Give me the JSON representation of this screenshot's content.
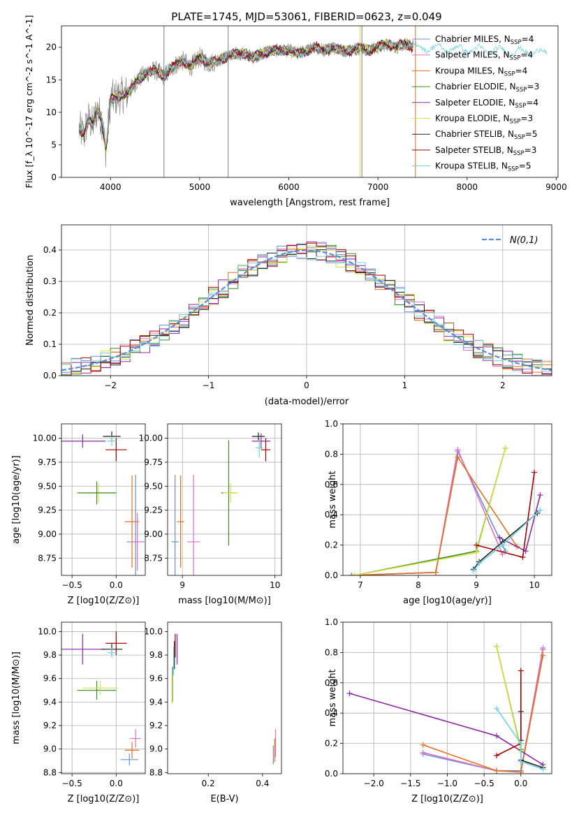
{
  "figure_title": "PLATE=1745, MJD=53061, FIBERID=0623, z=0.049",
  "chart_data": [
    {
      "type": "line",
      "name": "spectrum",
      "xlabel": "wavelength [Angstrom, rest frame]",
      "ylabel": "Flux [f_λ 10^-17 erg cm^-2 s^-1 A^-1]",
      "xlim": [
        3450,
        9020
      ],
      "ylim": [
        0,
        23.3
      ],
      "xticks": [
        4000,
        5000,
        6000,
        7000,
        8000,
        9000
      ],
      "yticks": [
        0,
        5,
        10,
        15,
        20
      ],
      "grid": false,
      "legend_position": "right",
      "data_trend": {
        "x": [
          3650,
          3700,
          3750,
          3800,
          3850,
          3900,
          3950,
          4000,
          4100,
          4200,
          4300,
          4400,
          4500,
          4600,
          4700,
          4800,
          4900,
          5000,
          5100,
          5200,
          5300,
          5400,
          5500,
          5600,
          5700,
          5800,
          5900,
          6000,
          6100,
          6200,
          6300,
          6400,
          6500,
          6600,
          6700,
          6800,
          6900,
          7000,
          7100,
          7200,
          7300,
          7400
        ],
        "y": [
          7.5,
          6.5,
          9.0,
          8.0,
          10.5,
          9.0,
          4.0,
          12.0,
          12.5,
          13.0,
          15.0,
          16.0,
          16.5,
          15.5,
          17.0,
          18.0,
          17.0,
          18.5,
          17.5,
          18.0,
          18.5,
          19.0,
          19.0,
          18.5,
          19.0,
          19.5,
          19.5,
          19.5,
          19.0,
          19.5,
          20.0,
          19.5,
          20.0,
          19.5,
          19.5,
          20.0,
          19.5,
          20.0,
          20.5,
          20.0,
          20.5,
          20.0
        ]
      },
      "series": [
        {
          "name": "Chabrier MILES, N_SSP=4",
          "color": "#6a8fd8"
        },
        {
          "name": "Salpeter MILES, N_SSP=4",
          "color": "#e070c0"
        },
        {
          "name": "Kroupa MILES, N_SSP=4",
          "color": "#e07020"
        },
        {
          "name": "Chabrier ELODIE, N_SSP=3",
          "color": "#3a8a2a"
        },
        {
          "name": "Salpeter ELODIE, N_SSP=4",
          "color": "#8a2aa0"
        },
        {
          "name": "Kroupa ELODIE, N_SSP=3",
          "color": "#d8e040"
        },
        {
          "name": "Chabrier STELIB, N_SSP=5",
          "color": "#202020"
        },
        {
          "name": "Salpeter STELIB, N_SSP=3",
          "color": "#a00000"
        },
        {
          "name": "Kroupa STELIB, N_SSP=5",
          "color": "#70d0e0"
        }
      ],
      "legend_entries": [
        {
          "base": "Chabrier MILES, N",
          "sub": "SSP",
          "tail": "=4"
        },
        {
          "base": "Salpeter MILES, N",
          "sub": "SSP",
          "tail": "=4"
        },
        {
          "base": "Kroupa MILES, N",
          "sub": "SSP",
          "tail": "=4"
        },
        {
          "base": "Chabrier ELODIE, N",
          "sub": "SSP",
          "tail": "=3"
        },
        {
          "base": "Salpeter ELODIE, N",
          "sub": "SSP",
          "tail": "=4"
        },
        {
          "base": "Kroupa ELODIE, N",
          "sub": "SSP",
          "tail": "=3"
        },
        {
          "base": "Chabrier STELIB, N",
          "sub": "SSP",
          "tail": "=5"
        },
        {
          "base": "Salpeter STELIB, N",
          "sub": "SSP",
          "tail": "=3"
        },
        {
          "base": "Kroupa STELIB, N",
          "sub": "SSP",
          "tail": "=5"
        }
      ]
    },
    {
      "type": "line",
      "name": "residual histogram",
      "xlabel": "(data-model)/error",
      "ylabel": "Normed distribution",
      "xlim": [
        -2.5,
        2.5
      ],
      "ylim": [
        0,
        0.48
      ],
      "xticks": [
        -2,
        -1,
        0,
        1,
        2
      ],
      "yticks": [
        0.0,
        0.1,
        0.2,
        0.3,
        0.4
      ],
      "grid": true,
      "legend": [
        "N(0,1)"
      ],
      "legend_position": "top-right",
      "normal_color": "#5b8bd8"
    },
    {
      "type": "scatter",
      "name": "age vs Z",
      "xlabel": "Z [log10(Z/Z⊙)]",
      "ylabel": "age [log10(age/yr)]",
      "xlim": [
        -0.62,
        0.33
      ],
      "ylim": [
        8.57,
        10.15
      ],
      "xticks": [
        -0.5,
        0.0
      ],
      "yticks": [
        8.75,
        9.0,
        9.25,
        9.5,
        9.75,
        10.0
      ],
      "grid": true,
      "points": [
        {
          "x": -0.38,
          "y": 9.97,
          "xerr": 0.26,
          "yerr": 0.07,
          "color": "#8a2aa0"
        },
        {
          "x": -0.05,
          "y": 10.02,
          "xerr": 0.1,
          "yerr": 0.05,
          "color": "#202020"
        },
        {
          "x": 0.0,
          "y": 9.88,
          "xerr": 0.12,
          "yerr": 0.12,
          "color": "#a00000"
        },
        {
          "x": -0.05,
          "y": 9.97,
          "xerr": 0.05,
          "yerr": 0.05,
          "color": "#70d0e0"
        },
        {
          "x": -0.2,
          "y": 9.43,
          "xerr": 0.2,
          "yerr": 0.1,
          "color": "#d8e040"
        },
        {
          "x": -0.22,
          "y": 9.43,
          "xerr": 0.22,
          "yerr": 0.12,
          "color": "#3a8a2a"
        },
        {
          "x": 0.18,
          "y": 9.13,
          "xerr": 0.08,
          "yerr": 0.48,
          "color": "#e07020"
        },
        {
          "x": 0.22,
          "y": 8.92,
          "xerr": 0.1,
          "yerr": 0.7,
          "color": "#6a8fd8"
        },
        {
          "x": 0.24,
          "y": 8.92,
          "xerr": 0.06,
          "yerr": 0.3,
          "color": "#e070c0"
        }
      ]
    },
    {
      "type": "scatter",
      "name": "age vs mass",
      "xlabel": "mass [log10(M/M⊙)]",
      "ylabel": "",
      "xlim": [
        8.84,
        10.07
      ],
      "ylim": [
        8.57,
        10.15
      ],
      "xticks": [
        9,
        10
      ],
      "yticks": [
        8.75,
        9.0,
        9.25,
        9.5,
        9.75,
        10.0
      ],
      "grid": true,
      "points": [
        {
          "x": 9.82,
          "y": 10.02,
          "xerr": 0.07,
          "yerr": 0.04,
          "color": "#202020"
        },
        {
          "x": 9.85,
          "y": 9.97,
          "xerr": 0.1,
          "yerr": 0.08,
          "color": "#8a2aa0"
        },
        {
          "x": 9.9,
          "y": 9.88,
          "xerr": 0.05,
          "yerr": 0.12,
          "color": "#a00000"
        },
        {
          "x": 9.83,
          "y": 9.9,
          "xerr": 0.04,
          "yerr": 0.1,
          "color": "#70d0e0"
        },
        {
          "x": 9.5,
          "y": 9.43,
          "xerr": 0.08,
          "yerr": 0.55,
          "color": "#3a8a2a"
        },
        {
          "x": 9.52,
          "y": 9.43,
          "xerr": 0.08,
          "yerr": 0.1,
          "color": "#d8e040"
        },
        {
          "x": 8.98,
          "y": 9.13,
          "xerr": 0.04,
          "yerr": 0.48,
          "color": "#e07020"
        },
        {
          "x": 8.92,
          "y": 8.92,
          "xerr": 0.04,
          "yerr": 0.7,
          "color": "#6a8fd8"
        },
        {
          "x": 9.12,
          "y": 8.92,
          "xerr": 0.07,
          "yerr": 0.7,
          "color": "#e070c0"
        }
      ]
    },
    {
      "type": "line",
      "name": "mass weight vs age",
      "xlabel": "age [log10(age/yr)]",
      "ylabel": "mass weight",
      "xlim": [
        6.7,
        10.3
      ],
      "ylim": [
        0,
        1.0
      ],
      "xticks": [
        7,
        8,
        9,
        10
      ],
      "yticks": [
        0.0,
        0.2,
        0.4,
        0.6,
        0.8,
        1.0
      ],
      "grid": true,
      "series": [
        {
          "color": "#6a8fd8",
          "x": [
            6.85,
            8.3,
            8.68,
            9.5
          ],
          "y": [
            0.0,
            0.02,
            0.82,
            0.16
          ]
        },
        {
          "color": "#e070c0",
          "x": [
            6.85,
            8.3,
            8.68,
            9.45
          ],
          "y": [
            0.0,
            0.02,
            0.83,
            0.14
          ]
        },
        {
          "color": "#e07020",
          "x": [
            6.85,
            8.3,
            8.68,
            9.7
          ],
          "y": [
            0.0,
            0.02,
            0.78,
            0.19
          ]
        },
        {
          "color": "#3a8a2a",
          "x": [
            6.9,
            9.0,
            9.5
          ],
          "y": [
            0.0,
            0.16,
            0.84
          ]
        },
        {
          "color": "#8a2aa0",
          "x": [
            9.4,
            9.85,
            10.1
          ],
          "y": [
            0.25,
            0.16,
            0.53
          ]
        },
        {
          "color": "#d8e040",
          "x": [
            6.9,
            9.0,
            9.5
          ],
          "y": [
            0.0,
            0.15,
            0.84
          ]
        },
        {
          "color": "#202020",
          "x": [
            8.95,
            9.05,
            9.45,
            10.05
          ],
          "y": [
            0.04,
            0.09,
            0.22,
            0.41
          ]
        },
        {
          "color": "#a00000",
          "x": [
            9.0,
            9.8,
            10.0
          ],
          "y": [
            0.2,
            0.12,
            0.68
          ]
        },
        {
          "color": "#70d0e0",
          "x": [
            8.95,
            9.05,
            9.45,
            10.1
          ],
          "y": [
            0.03,
            0.08,
            0.2,
            0.43
          ]
        }
      ]
    },
    {
      "type": "scatter",
      "name": "mass vs Z",
      "xlabel": "Z [log10(Z/Z⊙)]",
      "ylabel": "mass [log10(M/M⊙)]",
      "xlim": [
        -0.62,
        0.33
      ],
      "ylim": [
        8.79,
        10.08
      ],
      "xticks": [
        -0.5,
        0.0
      ],
      "yticks": [
        8.8,
        9.0,
        9.2,
        9.4,
        9.6,
        9.8,
        10.0
      ],
      "grid": true,
      "points": [
        {
          "x": -0.38,
          "y": 9.85,
          "xerr": 0.26,
          "yerr": 0.13,
          "color": "#8a2aa0"
        },
        {
          "x": -0.05,
          "y": 9.85,
          "xerr": 0.12,
          "yerr": 0.05,
          "color": "#202020"
        },
        {
          "x": 0.0,
          "y": 9.9,
          "xerr": 0.12,
          "yerr": 0.1,
          "color": "#a00000"
        },
        {
          "x": -0.05,
          "y": 9.82,
          "xerr": 0.05,
          "yerr": 0.04,
          "color": "#70d0e0"
        },
        {
          "x": -0.22,
          "y": 9.5,
          "xerr": 0.22,
          "yerr": 0.08,
          "color": "#3a8a2a"
        },
        {
          "x": -0.18,
          "y": 9.52,
          "xerr": 0.2,
          "yerr": 0.06,
          "color": "#d8e040"
        },
        {
          "x": 0.18,
          "y": 8.99,
          "xerr": 0.08,
          "yerr": 0.07,
          "color": "#e07020"
        },
        {
          "x": 0.15,
          "y": 8.91,
          "xerr": 0.1,
          "yerr": 0.05,
          "color": "#6a8fd8"
        },
        {
          "x": 0.22,
          "y": 9.09,
          "xerr": 0.06,
          "yerr": 0.08,
          "color": "#e070c0"
        }
      ]
    },
    {
      "type": "scatter",
      "name": "mass vs E(B-V)",
      "xlabel": "E(B-V)",
      "ylabel": "",
      "xlim": [
        0.05,
        0.47
      ],
      "ylim": [
        8.79,
        10.08
      ],
      "xticks": [
        0.2,
        0.4
      ],
      "yticks": [
        8.8,
        9.0,
        9.2,
        9.4,
        9.6,
        9.8,
        10.0
      ],
      "grid": false,
      "points": [
        {
          "x": 0.085,
          "y": 9.85,
          "yerr": 0.13,
          "color": "#8a2aa0"
        },
        {
          "x": 0.075,
          "y": 9.8,
          "yerr": 0.12,
          "color": "#202020"
        },
        {
          "x": 0.078,
          "y": 9.88,
          "yerr": 0.1,
          "color": "#a00000"
        },
        {
          "x": 0.072,
          "y": 9.75,
          "yerr": 0.12,
          "color": "#70d0e0"
        },
        {
          "x": 0.068,
          "y": 9.55,
          "yerr": 0.15,
          "color": "#3a8a2a"
        },
        {
          "x": 0.066,
          "y": 9.5,
          "yerr": 0.12,
          "color": "#d8e040"
        },
        {
          "x": 0.445,
          "y": 8.99,
          "yerr": 0.1,
          "color": "#e07020"
        },
        {
          "x": 0.44,
          "y": 8.95,
          "yerr": 0.08,
          "color": "#6a8fd8"
        },
        {
          "x": 0.448,
          "y": 9.05,
          "yerr": 0.12,
          "color": "#e070c0"
        }
      ]
    },
    {
      "type": "line",
      "name": "mass weight vs Z",
      "xlabel": "Z [log10(Z/Z⊙)]",
      "ylabel": "mass weight",
      "xlim": [
        -2.42,
        0.42
      ],
      "ylim": [
        0,
        1.0
      ],
      "xticks": [
        -2.0,
        -1.5,
        -1.0,
        -0.5,
        0.0
      ],
      "yticks": [
        0.0,
        0.2,
        0.4,
        0.6,
        0.8,
        1.0
      ],
      "grid": true,
      "series": [
        {
          "color": "#6a8fd8",
          "x": [
            -1.33,
            -0.33,
            0.0,
            0.3
          ],
          "y": [
            0.13,
            0.02,
            0.02,
            0.82
          ]
        },
        {
          "color": "#e070c0",
          "x": [
            -1.33,
            -0.33,
            0.0,
            0.3
          ],
          "y": [
            0.14,
            0.02,
            0.01,
            0.83
          ]
        },
        {
          "color": "#e07020",
          "x": [
            -1.33,
            -0.33,
            0.0,
            0.3
          ],
          "y": [
            0.19,
            0.02,
            0.01,
            0.78
          ]
        },
        {
          "color": "#3a8a2a",
          "x": [
            -0.33,
            0.0
          ],
          "y": [
            0.84,
            0.16
          ]
        },
        {
          "color": "#8a2aa0",
          "x": [
            -2.33,
            -0.33,
            0.3
          ],
          "y": [
            0.53,
            0.25,
            0.06
          ]
        },
        {
          "color": "#d8e040",
          "x": [
            -0.33,
            0.0
          ],
          "y": [
            0.84,
            0.15
          ]
        },
        {
          "color": "#202020",
          "x": [
            0.0,
            0.0,
            0.0,
            0.3
          ],
          "y": [
            0.41,
            0.22,
            0.09,
            0.04
          ]
        },
        {
          "color": "#a00000",
          "x": [
            -0.33,
            0.0,
            0.0
          ],
          "y": [
            0.12,
            0.2,
            0.68
          ]
        },
        {
          "color": "#70d0e0",
          "x": [
            -0.33,
            0.0,
            0.0,
            0.3
          ],
          "y": [
            0.43,
            0.2,
            0.08,
            0.03
          ]
        }
      ]
    }
  ]
}
